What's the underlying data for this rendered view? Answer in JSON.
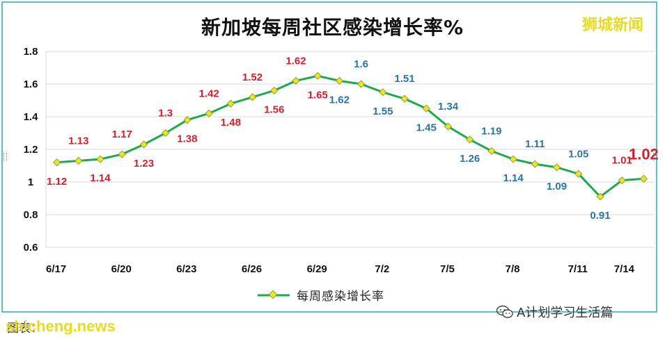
{
  "header": {
    "title": "新加坡每周社区感染增长率%",
    "watermark": "狮城新闻"
  },
  "footer": {
    "left_label": "图表：",
    "site": "shicheng.news",
    "account_icon": "wechat-icon",
    "account": "A计划学习生活篇"
  },
  "colors": {
    "line": "#1bab4a",
    "marker_fill": "#e8e82b",
    "marker_stroke": "#9a9a2a",
    "label_red": "#d11f2c",
    "label_blue": "#2874a6",
    "frame": "#58c2c6",
    "watermark": "#e9dc1c"
  },
  "chart_data": {
    "type": "line",
    "title": "新加坡每周社区感染增长率%",
    "x": [
      "6/17",
      "6/18",
      "6/19",
      "6/20",
      "6/21",
      "6/22",
      "6/23",
      "6/24",
      "6/25",
      "6/26",
      "6/27",
      "6/28",
      "6/29",
      "6/30",
      "7/1",
      "7/2",
      "7/3",
      "7/4",
      "7/5",
      "7/6",
      "7/7",
      "7/8",
      "7/9",
      "7/10",
      "7/11",
      "7/12",
      "7/13",
      "7/14"
    ],
    "x_tick_labels": [
      "6/17",
      "6/20",
      "6/23",
      "6/26",
      "6/29",
      "7/2",
      "7/5",
      "7/8",
      "7/11",
      "7/14"
    ],
    "series": [
      {
        "name": "每周感染增长率",
        "values": [
          1.12,
          1.13,
          1.14,
          1.17,
          1.23,
          1.3,
          1.38,
          1.42,
          1.48,
          1.52,
          1.56,
          1.62,
          1.65,
          1.62,
          1.6,
          1.55,
          1.51,
          1.45,
          1.34,
          1.26,
          1.19,
          1.14,
          1.11,
          1.09,
          1.05,
          0.91,
          1.01,
          1.02
        ]
      }
    ],
    "data_labels": [
      "1.12",
      "1.13",
      "1.14",
      "1.17",
      "1.23",
      "1.3",
      "1.38",
      "1.42",
      "1.48",
      "1.52",
      "1.56",
      "1.62",
      "1.65",
      "1.62",
      "1.6",
      "1.55",
      "1.51",
      "1.45",
      "1.34",
      "1.26",
      "1.19",
      "1.14",
      "1.11",
      "1.09",
      "1.05",
      "0.91",
      "1.01",
      "1.02"
    ],
    "ylim": [
      0.6,
      1.8
    ],
    "y_ticks": [
      "0.6",
      "0.8",
      "1",
      "1.2",
      "1.4",
      "1.6",
      "1.8"
    ],
    "grid": true,
    "legend": "bottom-center"
  }
}
